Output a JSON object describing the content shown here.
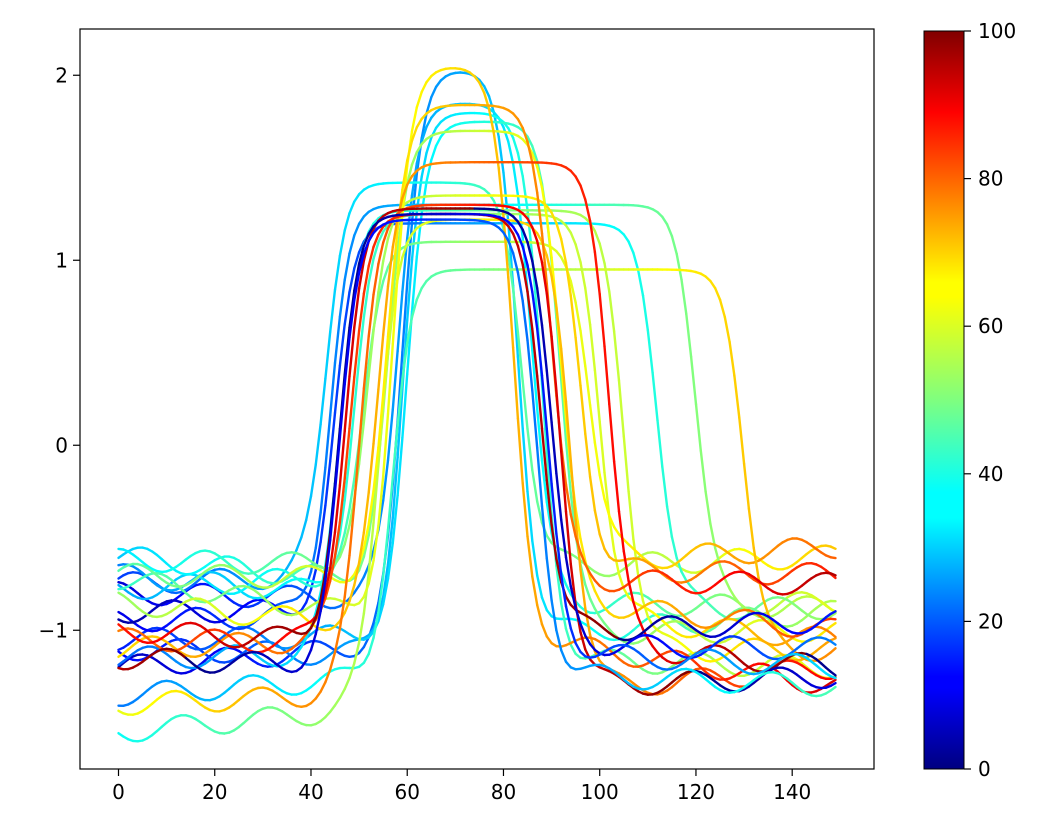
{
  "chart_data": {
    "type": "line",
    "title": "",
    "xlabel": "",
    "ylabel": "",
    "xlim": [
      -8,
      157
    ],
    "ylim": [
      -1.75,
      2.25
    ],
    "xticks": [
      0,
      20,
      40,
      60,
      80,
      100,
      120,
      140
    ],
    "yticks": [
      -1,
      0,
      1,
      2
    ],
    "grid": false,
    "legend": "none",
    "colormap": "jet",
    "colorbar": {
      "min": 0,
      "max": 100,
      "ticks": [
        0,
        20,
        40,
        60,
        80,
        100
      ]
    },
    "profile_shape": "plateau",
    "series": [
      {
        "c": 5,
        "low1": -1.2,
        "low2": -0.9,
        "high": 2.03,
        "rise": 59,
        "fall": 83
      },
      {
        "c": 8,
        "low1": -0.8,
        "low2": -0.88,
        "high": 1.85,
        "rise": 58,
        "fall": 86
      },
      {
        "c": 12,
        "low1": -1.1,
        "low2": -1.2,
        "high": 1.8,
        "rise": 59,
        "fall": 88
      },
      {
        "c": 15,
        "low1": -1.05,
        "low2": -1.0,
        "high": 1.75,
        "rise": 60,
        "fall": 92
      },
      {
        "c": 18,
        "low1": -0.75,
        "low2": -0.6,
        "high": 1.42,
        "rise": 43,
        "fall": 84
      },
      {
        "c": 10,
        "low1": -0.95,
        "low2": -0.85,
        "high": 1.3,
        "rise": 44,
        "fall": 120
      },
      {
        "c": 3,
        "low1": -0.9,
        "low2": -0.88,
        "high": 1.2,
        "rise": 45,
        "fall": 112
      },
      {
        "c": 22,
        "low1": -1.15,
        "low2": -1.1,
        "high": 1.27,
        "rise": 46,
        "fall": 105
      },
      {
        "c": 25,
        "low1": -0.7,
        "low2": -1.05,
        "high": 1.25,
        "rise": 49,
        "fall": 100
      },
      {
        "c": 28,
        "low1": -0.78,
        "low2": -0.55,
        "high": 1.1,
        "rise": 51,
        "fall": 98
      },
      {
        "c": 24,
        "low1": -1.35,
        "low2": -1.1,
        "high": 0.95,
        "rise": 57,
        "fall": 130
      },
      {
        "c": 32,
        "low1": -0.6,
        "low2": -1.0,
        "high": 1.7,
        "rise": 56,
        "fall": 92
      },
      {
        "c": 35,
        "low1": -0.62,
        "low2": -0.7,
        "high": 1.35,
        "rise": 52,
        "fall": 96
      },
      {
        "c": 38,
        "low1": -1.55,
        "low2": -1.2,
        "high": 1.22,
        "rise": 54,
        "fall": 94
      },
      {
        "c": 42,
        "low1": -0.72,
        "low2": -1.3,
        "high": 2.05,
        "rise": 57,
        "fall": 82
      },
      {
        "c": 45,
        "low1": -0.7,
        "low2": -0.75,
        "high": 1.84,
        "rise": 56,
        "fall": 90
      },
      {
        "c": 52,
        "low1": -0.85,
        "low2": -1.2,
        "high": 1.53,
        "rise": 54,
        "fall": 102
      },
      {
        "c": 60,
        "low1": -1.4,
        "low2": -1.25,
        "high": 1.3,
        "rise": 50,
        "fall": 92
      },
      {
        "c": 65,
        "low1": -1.1,
        "low2": -0.95,
        "high": 1.25,
        "rise": 48,
        "fall": 88
      },
      {
        "c": 75,
        "low1": -1.05,
        "low2": -1.1,
        "high": 1.28,
        "rise": 47,
        "fall": 90
      },
      {
        "c": 85,
        "low1": -1.0,
        "low2": -1.2,
        "high": 1.25,
        "rise": 46,
        "fall": 89
      },
      {
        "c": 95,
        "low1": -1.15,
        "low2": -1.3,
        "high": 1.22,
        "rise": 46,
        "fall": 87
      }
    ]
  }
}
